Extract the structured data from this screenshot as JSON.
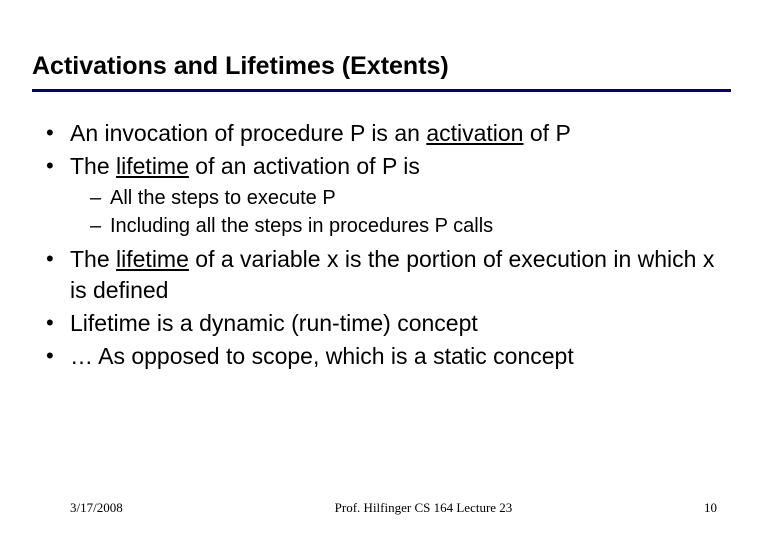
{
  "title": "Activations and Lifetimes (Extents)",
  "bullet1_a": "An invocation of procedure P is an ",
  "bullet1_word": "activation",
  "bullet1_b": " of P",
  "bullet2_a": "The ",
  "bullet2_word": "lifetime",
  "bullet2_b": " of an activation of P is",
  "sub1": "All the steps to execute P",
  "sub2": "Including all the steps in procedures P calls",
  "bullet3_a": "The ",
  "bullet3_word": "lifetime",
  "bullet3_b": " of a variable x is the portion of execution in which x is defined",
  "bullet4": "Lifetime is a dynamic (run-time) concept",
  "bullet5": "… As opposed to scope, which is a static concept",
  "footer": {
    "date": "3/17/2008",
    "center": "Prof. Hilfinger  CS 164  Lecture 23",
    "page": "10"
  },
  "colors": {
    "rule": "#000080",
    "text": "#000000",
    "bg": "#ffffff"
  }
}
